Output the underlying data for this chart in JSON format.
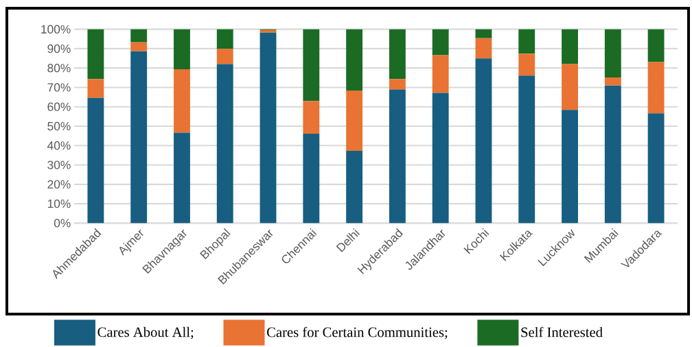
{
  "chart_data": {
    "type": "bar",
    "stacked": true,
    "categories": [
      "Ahmedabad",
      "Ajmer",
      "Bhavnagar",
      "Bhopal",
      "Bhubaneswar",
      "Chennai",
      "Delhi",
      "Hyderabad",
      "Jalandhar",
      "Kochi",
      "Kolkata",
      "Lucknow",
      "Mumbai",
      "Vadodara"
    ],
    "series": [
      {
        "name": "Cares About All;",
        "color": "#175e80",
        "values": [
          64.6,
          88.7,
          46.6,
          82.0,
          98.3,
          46.1,
          37.3,
          68.9,
          67.2,
          84.9,
          76.1,
          58.4,
          71.0,
          56.6
        ]
      },
      {
        "name": "Cares for Certain Communities;",
        "color": "#e97333",
        "values": [
          9.7,
          4.6,
          32.8,
          7.9,
          1.3,
          16.9,
          31.1,
          5.4,
          19.4,
          10.5,
          11.3,
          23.6,
          4.1,
          26.5
        ]
      },
      {
        "name": "Self Interested",
        "color": "#1b6b24",
        "values": [
          25.7,
          6.7,
          20.6,
          10.1,
          0.4,
          37.0,
          31.6,
          25.7,
          13.4,
          4.6,
          12.6,
          18.0,
          24.9,
          16.9
        ]
      }
    ],
    "ylim": [
      0,
      100
    ],
    "yticks": [
      {
        "value": 0,
        "label": "0%"
      },
      {
        "value": 10,
        "label": "10%"
      },
      {
        "value": 20,
        "label": "20%"
      },
      {
        "value": 30,
        "label": "30%"
      },
      {
        "value": 40,
        "label": "40%"
      },
      {
        "value": 50,
        "label": "50%"
      },
      {
        "value": 60,
        "label": "60%"
      },
      {
        "value": 70,
        "label": "70%"
      },
      {
        "value": 80,
        "label": "80%"
      },
      {
        "value": 90,
        "label": "90%"
      },
      {
        "value": 100,
        "label": "100%"
      }
    ],
    "grid": "y",
    "legend": "bottom"
  }
}
